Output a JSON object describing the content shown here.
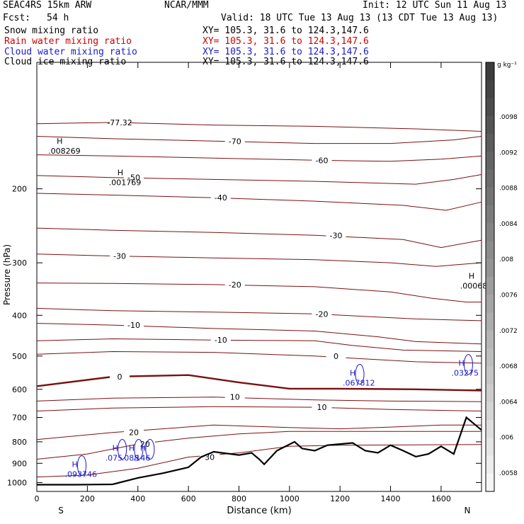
{
  "header": {
    "model": "SEAC4RS 15km ARW",
    "institution": "NCAR/MMM",
    "init": "Init: 12 UTC Sun 11 Aug 13",
    "fcst_label": "Fcst:",
    "fcst_value": "54 h",
    "valid": "Valid: 18 UTC Tue 13 Aug 13 (13 CDT Tue 13 Aug 13)"
  },
  "fields": [
    {
      "name": "Snow mixing ratio",
      "xy": "XY= 105.3, 31.6 to 124.3,147.6",
      "color": "#000000"
    },
    {
      "name": "Rain water mixing ratio",
      "xy": "XY= 105.3, 31.6 to 124.3,147.6",
      "color": "#d00000"
    },
    {
      "name": "Cloud water mixing ratio",
      "xy": "XY= 105.3, 31.6 to 124.3,147.6",
      "color": "#1a1acc"
    },
    {
      "name": "Cloud ice mixing ratio",
      "xy": "XY= 105.3, 31.6 to 124.3,147.6",
      "color": "#000000"
    }
  ],
  "chart_data": {
    "type": "line",
    "xlabel": "Distance (km)",
    "ylabel": "Pressure (hPa)",
    "x_ticks": [
      "0",
      "200",
      "400",
      "600",
      "800",
      "1000",
      "1200",
      "1400",
      "1600"
    ],
    "y_ticks": [
      "200",
      "300",
      "400",
      "500",
      "600",
      "700",
      "800",
      "900",
      "1000"
    ],
    "xlim": [
      0,
      1760
    ],
    "ylim": [
      1050,
      100
    ],
    "y_scale": "log",
    "x_endpoints": {
      "left": "S",
      "right": "N"
    },
    "colorbar": {
      "unit": "g kg⁻¹",
      "ticks": [
        ".0098",
        ".0092",
        ".0088",
        ".0084",
        ".008",
        ".0076",
        ".0072",
        ".0068",
        ".0064",
        ".006",
        ".0058"
      ]
    },
    "temperature_contours": [
      {
        "label": "-77.32",
        "points": [
          [
            0,
            140
          ],
          [
            300,
            139
          ],
          [
            700,
            141
          ],
          [
            1100,
            142
          ],
          [
            1500,
            144
          ],
          [
            1760,
            146
          ]
        ]
      },
      {
        "label": "-70",
        "points": [
          [
            0,
            150
          ],
          [
            300,
            152
          ],
          [
            700,
            154
          ],
          [
            1100,
            156
          ],
          [
            1400,
            156
          ],
          [
            1650,
            153
          ],
          [
            1760,
            150
          ]
        ]
      },
      {
        "label": "-60",
        "points": [
          [
            0,
            166
          ],
          [
            300,
            167
          ],
          [
            700,
            169
          ],
          [
            1100,
            171
          ],
          [
            1400,
            172
          ],
          [
            1600,
            170
          ],
          [
            1760,
            167
          ]
        ]
      },
      {
        "label": "-50",
        "points": [
          [
            0,
            186
          ],
          [
            300,
            188
          ],
          [
            700,
            190
          ],
          [
            1100,
            192
          ],
          [
            1500,
            195
          ],
          [
            1650,
            190
          ],
          [
            1760,
            185
          ]
        ]
      },
      {
        "label": "-40",
        "points": [
          [
            0,
            205
          ],
          [
            300,
            207
          ],
          [
            700,
            210
          ],
          [
            1100,
            214
          ],
          [
            1450,
            219
          ],
          [
            1620,
            225
          ],
          [
            1760,
            215
          ]
        ]
      },
      {
        "label": "-30",
        "points": [
          [
            0,
            248
          ],
          [
            300,
            251
          ],
          [
            700,
            254
          ],
          [
            1100,
            258
          ],
          [
            1450,
            264
          ],
          [
            1600,
            276
          ],
          [
            1760,
            265
          ]
        ]
      },
      {
        "label": "-30",
        "points": [
          [
            0,
            286
          ],
          [
            300,
            289
          ],
          [
            700,
            292
          ],
          [
            1100,
            295
          ],
          [
            1400,
            300
          ],
          [
            1580,
            306
          ],
          [
            1700,
            302
          ],
          [
            1760,
            300
          ]
        ]
      },
      {
        "label": "-20",
        "points": [
          [
            0,
            335
          ],
          [
            300,
            336
          ],
          [
            700,
            338
          ],
          [
            1100,
            342
          ],
          [
            1400,
            352
          ],
          [
            1560,
            364
          ],
          [
            1700,
            372
          ],
          [
            1760,
            372
          ]
        ]
      },
      {
        "label": "-20",
        "points": [
          [
            0,
            385
          ],
          [
            300,
            390
          ],
          [
            700,
            393
          ],
          [
            1100,
            397
          ],
          [
            1500,
            408
          ],
          [
            1760,
            412
          ]
        ]
      },
      {
        "label": "-10",
        "points": [
          [
            0,
            418
          ],
          [
            300,
            422
          ],
          [
            700,
            430
          ],
          [
            1100,
            436
          ],
          [
            1350,
            450
          ],
          [
            1500,
            462
          ],
          [
            1760,
            468
          ]
        ]
      },
      {
        "label": "-10",
        "points": [
          [
            0,
            460
          ],
          [
            300,
            455
          ],
          [
            700,
            458
          ],
          [
            1100,
            460
          ],
          [
            1250,
            472
          ],
          [
            1450,
            484
          ],
          [
            1760,
            488
          ]
        ]
      },
      {
        "label": "0",
        "points": [
          [
            0,
            495
          ],
          [
            300,
            488
          ],
          [
            700,
            490
          ],
          [
            1100,
            500
          ],
          [
            1300,
            508
          ],
          [
            1500,
            516
          ],
          [
            1760,
            520
          ]
        ]
      },
      {
        "label": "0",
        "points": [
          [
            0,
            590
          ],
          [
            300,
            560
          ],
          [
            600,
            555
          ],
          [
            800,
            578
          ],
          [
            1000,
            598
          ],
          [
            1200,
            598
          ],
          [
            1500,
            600
          ],
          [
            1760,
            604
          ]
        ]
      },
      {
        "label": "10",
        "points": [
          [
            0,
            640
          ],
          [
            300,
            630
          ],
          [
            700,
            626
          ],
          [
            1100,
            636
          ],
          [
            1400,
            640
          ],
          [
            1760,
            642
          ]
        ]
      },
      {
        "label": "10",
        "points": [
          [
            0,
            676
          ],
          [
            300,
            665
          ],
          [
            700,
            660
          ],
          [
            1100,
            662
          ],
          [
            1400,
            670
          ],
          [
            1760,
            676
          ]
        ]
      },
      {
        "label": "20",
        "points": [
          [
            0,
            790
          ],
          [
            300,
            760
          ],
          [
            700,
            730
          ],
          [
            1000,
            740
          ],
          [
            1200,
            745
          ],
          [
            1400,
            738
          ],
          [
            1600,
            730
          ],
          [
            1760,
            730
          ]
        ]
      },
      {
        "label": "20",
        "points": [
          [
            0,
            880
          ],
          [
            200,
            855
          ],
          [
            400,
            810
          ],
          [
            600,
            784
          ],
          [
            800,
            766
          ],
          [
            1000,
            756
          ],
          [
            1760,
            756
          ]
        ]
      },
      {
        "label": "30",
        "points": [
          [
            0,
            970
          ],
          [
            200,
            960
          ],
          [
            400,
            925
          ],
          [
            600,
            870
          ],
          [
            800,
            850
          ],
          [
            1000,
            820
          ],
          [
            1200,
            815
          ],
          [
            1760,
            812
          ]
        ]
      }
    ],
    "terrain_pressure": [
      [
        0,
        1012
      ],
      [
        150,
        1012
      ],
      [
        300,
        1010
      ],
      [
        400,
        975
      ],
      [
        500,
        950
      ],
      [
        600,
        920
      ],
      [
        650,
        870
      ],
      [
        700,
        845
      ],
      [
        800,
        860
      ],
      [
        850,
        850
      ],
      [
        880,
        880
      ],
      [
        900,
        905
      ],
      [
        950,
        840
      ],
      [
        1020,
        800
      ],
      [
        1050,
        830
      ],
      [
        1100,
        840
      ],
      [
        1150,
        815
      ],
      [
        1200,
        810
      ],
      [
        1250,
        805
      ],
      [
        1300,
        840
      ],
      [
        1350,
        850
      ],
      [
        1400,
        815
      ],
      [
        1450,
        840
      ],
      [
        1500,
        868
      ],
      [
        1550,
        855
      ],
      [
        1600,
        820
      ],
      [
        1650,
        855
      ],
      [
        1700,
        700
      ],
      [
        1760,
        750
      ]
    ],
    "cloud_water_maxima": [
      {
        "label": ".067812",
        "x": 1250,
        "p": 570
      },
      {
        "label": ".03275",
        "x": 1680,
        "p": 540
      },
      {
        "label": ".093746",
        "x": 150,
        "p": 940
      },
      {
        "label": ".075",
        "x": 310,
        "p": 860
      },
      {
        "label": ".088",
        "x": 375,
        "p": 860
      },
      {
        "label": ".146",
        "x": 420,
        "p": 860
      }
    ],
    "cloud_ice_maxima": [
      {
        "label": ".008269",
        "x": 90,
        "p": 160
      },
      {
        "label": ".001769",
        "x": 330,
        "p": 190
      },
      {
        "label": ".00068",
        "x": 1720,
        "p": 335
      }
    ],
    "low_marker": "H"
  }
}
